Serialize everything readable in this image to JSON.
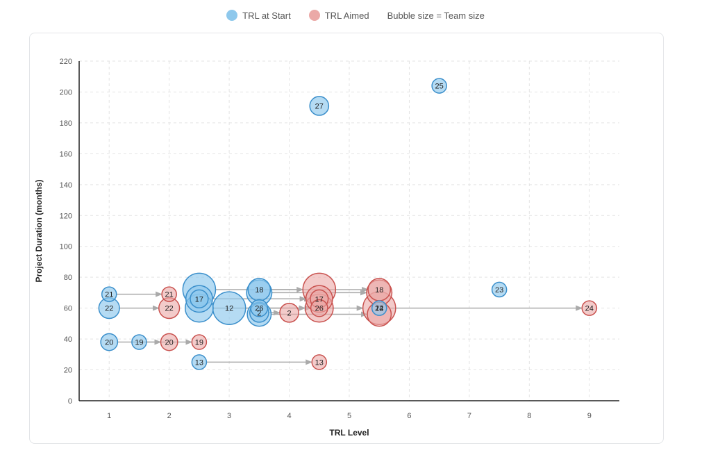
{
  "legend": {
    "start_label": "TRL at Start",
    "aimed_label": "TRL Aimed",
    "size_note": "Bubble size = Team size"
  },
  "colors": {
    "start_fill": "#8ec8ec",
    "start_stroke": "#3b8fcb",
    "aimed_fill": "#eba9a7",
    "aimed_stroke": "#c9524f",
    "arrow": "#aaaaaa",
    "grid": "#e3e3e3"
  },
  "chart_data": {
    "type": "scatter",
    "subtype": "bubble",
    "xlabel": "TRL Level",
    "ylabel": "Project Duration (months)",
    "xlim": [
      0.5,
      9.5
    ],
    "ylim": [
      0,
      220
    ],
    "xticks": [
      1,
      2,
      3,
      4,
      5,
      6,
      7,
      8,
      9
    ],
    "yticks": [
      0,
      20,
      40,
      60,
      80,
      100,
      120,
      140,
      160,
      180,
      200,
      220
    ],
    "grid": true,
    "legend_position": "top-center",
    "projects": [
      {
        "label": "21",
        "duration": 69,
        "trl_start": 1,
        "trl_aimed": 2,
        "team_size": 6
      },
      {
        "label": "22",
        "duration": 60,
        "trl_start": 1,
        "trl_aimed": 2,
        "team_size": 12
      },
      {
        "label": "20",
        "duration": 38,
        "trl_start": 1,
        "trl_aimed": 2,
        "team_size": 8
      },
      {
        "label": "19",
        "duration": 38,
        "trl_start": 1.5,
        "trl_aimed": 2.5,
        "team_size": 6
      },
      {
        "label": "13",
        "duration": 25,
        "trl_start": 2.5,
        "trl_aimed": 4.5,
        "team_size": 6
      },
      {
        "label": "17",
        "duration": 66,
        "trl_start": 2.5,
        "trl_aimed": 4.5,
        "team_size": 9
      },
      {
        "label": "",
        "duration": 72,
        "trl_start": 2.5,
        "trl_aimed": 4.5,
        "team_size": 30
      },
      {
        "label": "",
        "duration": 66,
        "trl_start": 2.5,
        "trl_aimed": 4.5,
        "team_size": 20
      },
      {
        "label": "",
        "duration": 60,
        "trl_start": 2.5,
        "trl_aimed": 4.5,
        "team_size": 22
      },
      {
        "label": "12",
        "duration": 60,
        "trl_start": 3,
        "trl_aimed": 5.5,
        "team_size": 30
      },
      {
        "label": "18",
        "duration": 72,
        "trl_start": 3.5,
        "trl_aimed": 5.5,
        "team_size": 14
      },
      {
        "label": "",
        "duration": 70,
        "trl_start": 3.5,
        "trl_aimed": 5.5,
        "team_size": 18
      },
      {
        "label": "26",
        "duration": 60,
        "trl_start": 3.5,
        "trl_aimed": 4.5,
        "team_size": 8
      },
      {
        "label": "",
        "duration": 56,
        "trl_start": 3.5,
        "trl_aimed": 5.5,
        "team_size": 16
      },
      {
        "label": "2",
        "duration": 57,
        "trl_start": 3.5,
        "trl_aimed": 4,
        "team_size": 10
      },
      {
        "label": "27",
        "duration": 191,
        "trl_start": 4.5,
        "trl_aimed": null,
        "team_size": 10
      },
      {
        "label": "25",
        "duration": 204,
        "trl_start": 6.5,
        "trl_aimed": null,
        "team_size": 6
      },
      {
        "label": "23",
        "duration": 72,
        "trl_start": 7.5,
        "trl_aimed": null,
        "team_size": 6
      },
      {
        "label": "24",
        "duration": 60,
        "trl_start": 5.5,
        "trl_aimed": 9,
        "team_size": 6
      }
    ]
  }
}
